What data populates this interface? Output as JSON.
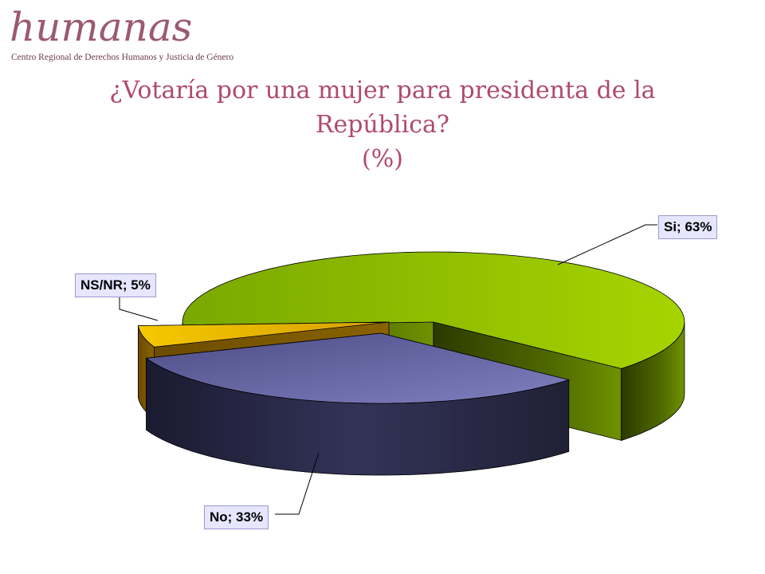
{
  "logo": {
    "wordmark": "humanas",
    "subtitle": "Centro Regional de Derechos Humanos y Justicia de Género"
  },
  "title": {
    "line1": "¿Votaría por una mujer para presidenta de la",
    "line2": "República?",
    "line3": "(%)"
  },
  "chart_data": {
    "type": "pie",
    "title": "¿Votaría por una mujer para presidenta de la República? (%)",
    "slices": [
      {
        "name": "Si",
        "value": 63,
        "label": "Si; 63%",
        "color": "#8cbf00"
      },
      {
        "name": "No",
        "value": 33,
        "label": "No; 33%",
        "color": "#5a5a9a"
      },
      {
        "name": "NS/NR",
        "value": 5,
        "label": "NS/NR; 5%",
        "color": "#e8b400"
      }
    ],
    "three_d": true,
    "exploded": true
  }
}
